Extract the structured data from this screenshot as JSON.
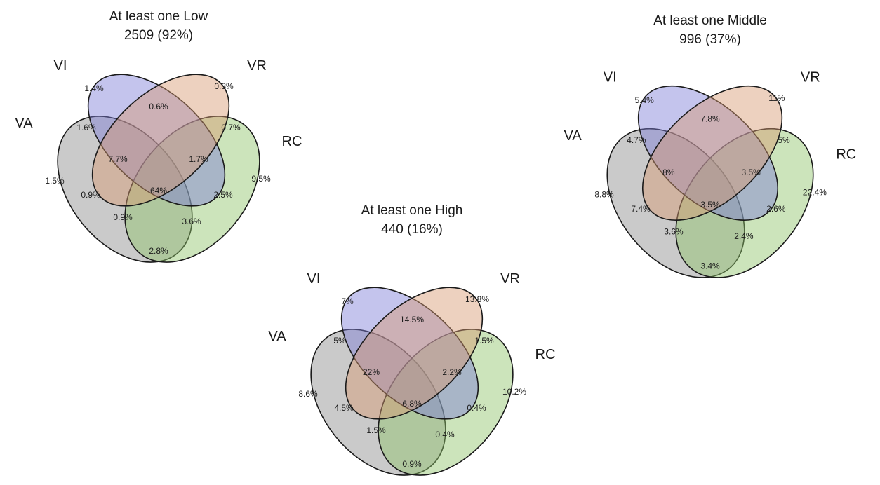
{
  "colors": {
    "VA": "#8a8a8a",
    "VI": "#7c7cd8",
    "VR": "#d79a70",
    "RC": "#8fc468"
  },
  "diagrams": [
    {
      "id": "low",
      "title_line1": "At least one Low",
      "title_line2": "2509 (92%)",
      "sets": {
        "VA": "VA",
        "VI": "VI",
        "VR": "VR",
        "RC": "RC"
      },
      "regions": {
        "VA_only": "1.5%",
        "VI_only": "1.4%",
        "VR_only": "0.3%",
        "RC_only": "9.5%",
        "VA_VI": "1.6%",
        "VI_VR": "0.6%",
        "VR_RC": "0.7%",
        "VA_VR": "0.9%",
        "VI_RC": "2.5%",
        "VA_RC": "2.8%",
        "VA_VI_VR": "7.7%",
        "VI_VR_RC": "1.7%",
        "VA_VR_RC": "0.9%",
        "VA_VI_RC": "3.6%",
        "all": "64%"
      }
    },
    {
      "id": "middle",
      "title_line1": "At least one Middle",
      "title_line2": "996 (37%)",
      "sets": {
        "VA": "VA",
        "VI": "VI",
        "VR": "VR",
        "RC": "RC"
      },
      "regions": {
        "VA_only": "8.8%",
        "VI_only": "5.4%",
        "VR_only": "11%",
        "RC_only": "22.4%",
        "VA_VI": "4.7%",
        "VI_VR": "7.8%",
        "VR_RC": "5%",
        "VA_VR": "7.4%",
        "VI_RC": "2.6%",
        "VA_RC": "3.4%",
        "VA_VI_VR": "8%",
        "VI_VR_RC": "3.5%",
        "VA_VR_RC": "3.6%",
        "VA_VI_RC": "2.4%",
        "all": "3.5%"
      }
    },
    {
      "id": "high",
      "title_line1": "At least one High",
      "title_line2": "440 (16%)",
      "sets": {
        "VA": "VA",
        "VI": "VI",
        "VR": "VR",
        "RC": "RC"
      },
      "regions": {
        "VA_only": "8.6%",
        "VI_only": "7%",
        "VR_only": "13.8%",
        "RC_only": "10.2%",
        "VA_VI": "5%",
        "VI_VR": "14.5%",
        "VR_RC": "1.5%",
        "VA_VR": "4.5%",
        "VI_RC": "0.4%",
        "VA_RC": "0.9%",
        "VA_VI_VR": "22%",
        "VI_VR_RC": "2.2%",
        "VA_VR_RC": "1.5%",
        "VA_VI_RC": "0.4%",
        "all": "6.8%"
      }
    }
  ]
}
